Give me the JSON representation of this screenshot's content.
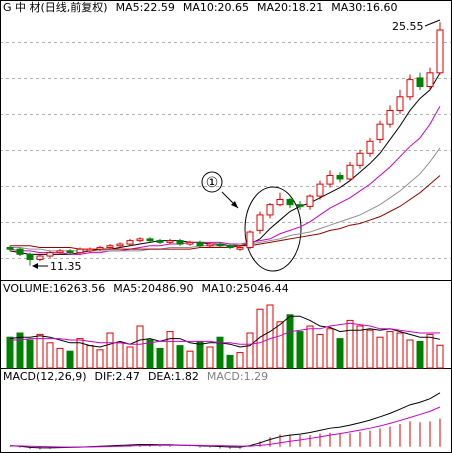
{
  "chart_data": [
    {
      "type": "candlestick",
      "title": "G 中 材(日线,前复权)",
      "up_color": "#e00000",
      "down_color": "#008000",
      "ylim": [
        10.5,
        25.8
      ],
      "open": [
        12.4,
        12.3,
        12.0,
        11.7,
        11.9,
        12.1,
        12.2,
        12.1,
        12.2,
        12.3,
        12.4,
        12.5,
        12.6,
        12.8,
        12.9,
        12.8,
        12.7,
        12.8,
        12.6,
        12.7,
        12.5,
        12.6,
        12.5,
        12.3,
        12.4,
        13.4,
        14.3,
        14.9,
        15.2,
        14.9,
        14.8,
        15.4,
        16.1,
        16.6,
        16.4,
        17.2,
        17.9,
        18.7,
        19.6,
        20.4,
        21.2,
        22.3,
        21.8,
        22.6
      ],
      "high": [
        12.5,
        12.4,
        12.1,
        12.0,
        12.2,
        12.3,
        12.3,
        12.4,
        12.4,
        12.5,
        12.6,
        12.7,
        12.9,
        13.0,
        13.0,
        12.9,
        12.9,
        12.9,
        12.8,
        12.8,
        12.7,
        12.7,
        12.6,
        12.5,
        13.4,
        14.5,
        15.0,
        15.6,
        15.3,
        15.1,
        15.5,
        16.3,
        16.9,
        16.8,
        17.4,
        18.1,
        18.8,
        19.8,
        20.7,
        21.6,
        22.5,
        22.6,
        22.9,
        25.55
      ],
      "low": [
        12.2,
        11.9,
        11.35,
        11.6,
        11.8,
        12.0,
        12.0,
        12.0,
        12.1,
        12.2,
        12.3,
        12.4,
        12.5,
        12.7,
        12.7,
        12.6,
        12.6,
        12.5,
        12.5,
        12.4,
        12.4,
        12.4,
        12.3,
        12.2,
        12.3,
        13.2,
        14.1,
        14.8,
        14.7,
        14.6,
        14.6,
        15.2,
        15.9,
        16.2,
        16.3,
        17.0,
        17.7,
        18.5,
        19.4,
        20.2,
        21.0,
        21.6,
        21.6,
        22.5
      ],
      "close": [
        12.3,
        12.0,
        11.7,
        11.9,
        12.1,
        12.2,
        12.1,
        12.3,
        12.3,
        12.4,
        12.5,
        12.6,
        12.8,
        12.9,
        12.8,
        12.7,
        12.8,
        12.6,
        12.7,
        12.5,
        12.6,
        12.5,
        12.4,
        12.4,
        13.3,
        14.3,
        14.9,
        15.2,
        14.9,
        14.8,
        15.4,
        16.1,
        16.6,
        16.4,
        17.2,
        17.9,
        18.6,
        19.6,
        20.4,
        21.2,
        22.2,
        21.8,
        22.6,
        25.1
      ],
      "series": [
        {
          "name": "MA5:22.59",
          "color": "#000000",
          "values": [
            12.2,
            12.1,
            12.0,
            12.0,
            12.0,
            12.0,
            12.0,
            12.1,
            12.2,
            12.3,
            12.3,
            12.4,
            12.5,
            12.6,
            12.7,
            12.8,
            12.8,
            12.8,
            12.7,
            12.7,
            12.6,
            12.6,
            12.5,
            12.5,
            12.6,
            12.9,
            13.5,
            14.0,
            14.5,
            14.8,
            15.0,
            15.3,
            15.6,
            15.9,
            16.3,
            16.8,
            17.3,
            17.9,
            18.7,
            19.5,
            20.4,
            21.1,
            21.6,
            22.59
          ]
        },
        {
          "name": "MA10:20.65",
          "color": "#cc00cc",
          "values": [
            12.3,
            12.2,
            12.2,
            12.1,
            12.1,
            12.1,
            12.0,
            12.0,
            12.1,
            12.1,
            12.2,
            12.2,
            12.3,
            12.4,
            12.5,
            12.5,
            12.6,
            12.6,
            12.7,
            12.7,
            12.7,
            12.7,
            12.6,
            12.6,
            12.7,
            12.8,
            12.9,
            13.2,
            13.4,
            13.6,
            13.9,
            14.3,
            14.7,
            15.0,
            15.3,
            15.7,
            16.1,
            16.6,
            17.1,
            17.7,
            18.3,
            18.8,
            19.6,
            20.65
          ]
        },
        {
          "name": "MA20:18.21",
          "color": "#909090",
          "values": [
            12.4,
            12.4,
            12.3,
            12.3,
            12.2,
            12.2,
            12.2,
            12.2,
            12.2,
            12.2,
            12.2,
            12.2,
            12.2,
            12.2,
            12.3,
            12.3,
            12.4,
            12.4,
            12.4,
            12.5,
            12.5,
            12.5,
            12.5,
            12.6,
            12.6,
            12.7,
            12.8,
            12.9,
            13.1,
            13.2,
            13.3,
            13.5,
            13.7,
            13.9,
            14.1,
            14.3,
            14.6,
            14.9,
            15.3,
            15.7,
            16.2,
            16.7,
            17.4,
            18.21
          ]
        },
        {
          "name": "MA30:16.60",
          "color": "#990000",
          "values": [
            12.5,
            12.5,
            12.5,
            12.4,
            12.4,
            12.4,
            12.4,
            12.3,
            12.3,
            12.3,
            12.3,
            12.3,
            12.3,
            12.3,
            12.3,
            12.3,
            12.3,
            12.3,
            12.3,
            12.4,
            12.4,
            12.4,
            12.4,
            12.5,
            12.5,
            12.6,
            12.7,
            12.8,
            12.9,
            13.0,
            13.1,
            13.2,
            13.4,
            13.5,
            13.7,
            13.8,
            14.0,
            14.2,
            14.5,
            14.8,
            15.2,
            15.6,
            16.1,
            16.6
          ]
        }
      ],
      "annotations": [
        "25.55",
        "11.35",
        "①"
      ]
    },
    {
      "type": "bar",
      "title": "VOLUME:16263.56",
      "ylim": [
        0,
        50000
      ],
      "values": [
        22000,
        25000,
        20000,
        24000,
        18000,
        14000,
        12000,
        21000,
        16000,
        13000,
        25000,
        18000,
        15000,
        30000,
        20000,
        14000,
        26000,
        16000,
        12000,
        19000,
        15000,
        22000,
        9000,
        11000,
        25000,
        42000,
        45000,
        33000,
        38000,
        26000,
        30000,
        24000,
        28000,
        21000,
        34000,
        30000,
        27000,
        22000,
        26000,
        25000,
        20000,
        19000,
        24000,
        16263.56
      ],
      "series": [
        {
          "name": "MA5:20486.90",
          "color": "#000000",
          "values": [
            21000,
            22000,
            22000,
            23000,
            22000,
            20000,
            18000,
            18000,
            16000,
            15000,
            17000,
            19000,
            17000,
            20000,
            21000,
            19000,
            21000,
            21000,
            18000,
            17000,
            18000,
            18000,
            17000,
            15000,
            16000,
            22000,
            26000,
            31000,
            37000,
            37000,
            34000,
            30000,
            29000,
            26000,
            27000,
            27000,
            28000,
            27000,
            28000,
            26000,
            24000,
            22000,
            22000,
            20486.9
          ]
        },
        {
          "name": "MA10:25046.44",
          "color": "#cc00cc",
          "values": [
            20000,
            20000,
            21000,
            21000,
            21000,
            21000,
            20000,
            20000,
            19000,
            18000,
            18000,
            18000,
            17000,
            17000,
            18000,
            19000,
            19000,
            19000,
            19000,
            19000,
            19000,
            18000,
            18000,
            17000,
            17000,
            18000,
            21000,
            23000,
            26000,
            27000,
            28000,
            28000,
            30000,
            31000,
            32000,
            31000,
            30000,
            28000,
            28000,
            27000,
            26000,
            25000,
            25000,
            25046.44
          ]
        }
      ]
    },
    {
      "type": "macd",
      "title": "MACD(12,26,9)",
      "ylim": [
        -0.15,
        2.6
      ],
      "series": [
        {
          "name": "DIF:2.47",
          "color": "#000000",
          "values": [
            0.05,
            0.02,
            -0.03,
            -0.05,
            -0.05,
            -0.04,
            -0.03,
            -0.02,
            0.0,
            0.02,
            0.04,
            0.06,
            0.08,
            0.1,
            0.1,
            0.09,
            0.09,
            0.07,
            0.06,
            0.04,
            0.03,
            0.01,
            -0.01,
            -0.02,
            0.05,
            0.18,
            0.33,
            0.46,
            0.53,
            0.58,
            0.65,
            0.75,
            0.85,
            0.9,
            0.99,
            1.1,
            1.22,
            1.37,
            1.53,
            1.72,
            1.92,
            2.04,
            2.2,
            2.47
          ]
        },
        {
          "name": "DEA:1.82",
          "color": "#cc00cc",
          "values": [
            0.04,
            0.04,
            0.02,
            0.01,
            0.0,
            -0.01,
            -0.02,
            -0.02,
            -0.01,
            0.0,
            0.01,
            0.02,
            0.04,
            0.05,
            0.06,
            0.07,
            0.07,
            0.07,
            0.07,
            0.06,
            0.05,
            0.05,
            0.04,
            0.03,
            0.03,
            0.06,
            0.11,
            0.18,
            0.25,
            0.31,
            0.38,
            0.45,
            0.53,
            0.6,
            0.68,
            0.76,
            0.85,
            0.95,
            1.07,
            1.2,
            1.34,
            1.48,
            1.62,
            1.82
          ]
        }
      ],
      "histogram": {
        "name": "MACD:1.29",
        "values": [
          0.02,
          -0.04,
          -0.1,
          -0.12,
          -0.1,
          -0.06,
          -0.02,
          0.0,
          0.02,
          0.04,
          0.06,
          0.08,
          0.08,
          0.1,
          0.08,
          0.04,
          0.04,
          0.0,
          -0.02,
          -0.04,
          -0.04,
          -0.08,
          -0.1,
          -0.1,
          0.04,
          0.24,
          0.44,
          0.56,
          0.56,
          0.54,
          0.54,
          0.6,
          0.64,
          0.6,
          0.62,
          0.68,
          0.74,
          0.84,
          0.92,
          1.04,
          1.16,
          1.12,
          1.16,
          1.29
        ]
      }
    }
  ]
}
